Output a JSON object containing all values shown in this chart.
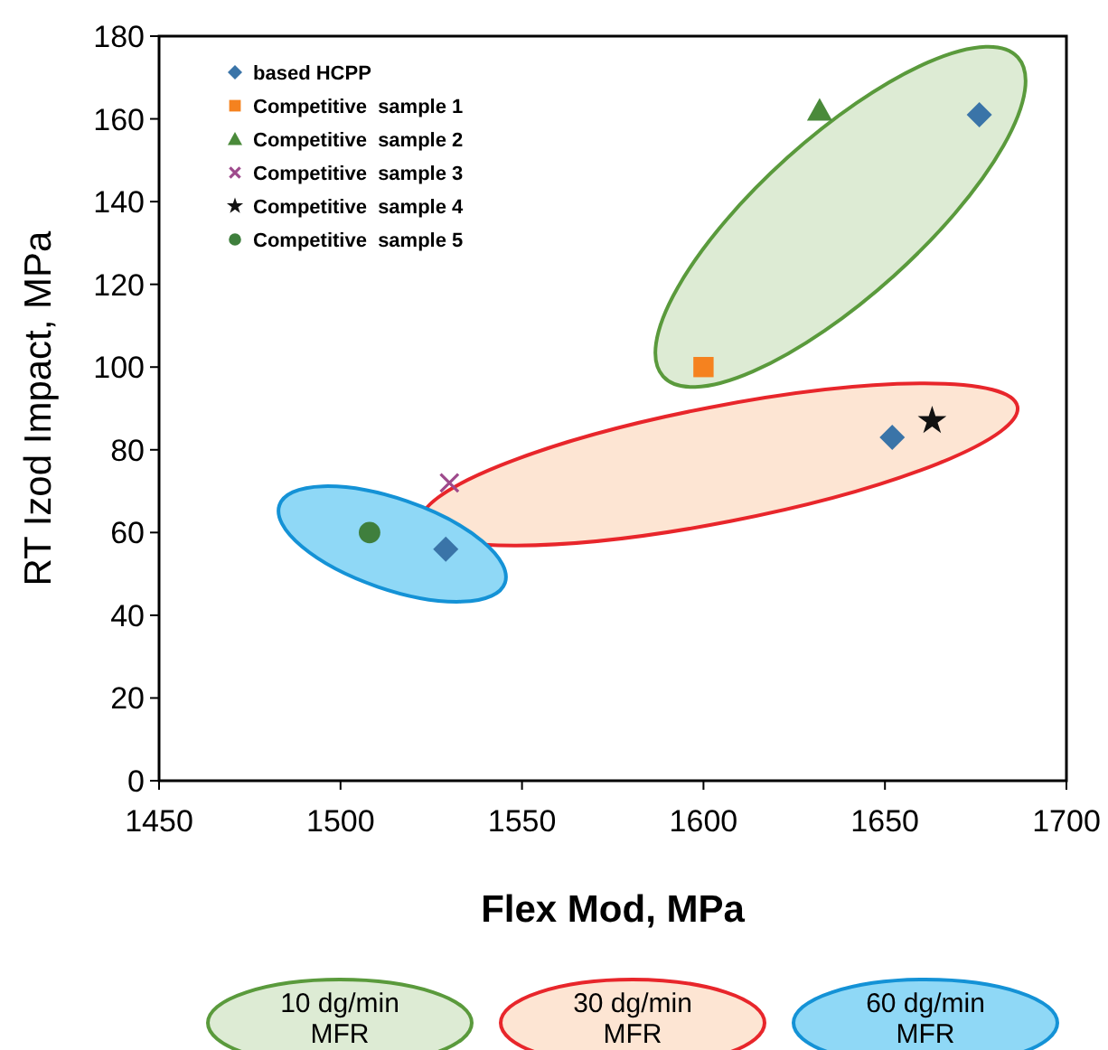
{
  "chart_data": {
    "type": "scatter",
    "xlabel": "Flex Mod, MPa",
    "ylabel": "RT Izod Impact, MPa",
    "xlim": [
      1450,
      1700
    ],
    "xticks": [
      1450,
      1500,
      1550,
      1600,
      1650,
      1700
    ],
    "ylim": [
      0,
      180
    ],
    "yticks": [
      0,
      20,
      40,
      60,
      80,
      100,
      120,
      140,
      160,
      180
    ],
    "grid": false,
    "legend": "top left",
    "series": [
      {
        "name": "based HCPP",
        "color": "#3a74a8",
        "marker": "diamond",
        "x": [
          1676,
          1652,
          1529
        ],
        "values": [
          161,
          83,
          56
        ]
      },
      {
        "name": "Competitive  sample 1",
        "color": "#f5821f",
        "marker": "square",
        "x": [
          1600
        ],
        "values": [
          100
        ]
      },
      {
        "name": "Competitive  sample 2",
        "color": "#4a8a3a",
        "marker": "triangle",
        "x": [
          1632
        ],
        "values": [
          162
        ]
      },
      {
        "name": "Competitive  sample 3",
        "color": "#9e4a8c",
        "marker": "cross",
        "x": [
          1530
        ],
        "values": [
          72
        ]
      },
      {
        "name": "Competitive  sample 4",
        "color": "#111111",
        "marker": "star",
        "x": [
          1663
        ],
        "values": [
          87
        ]
      },
      {
        "name": "Competitive  sample 5",
        "color": "#3f7f3d",
        "marker": "circle",
        "x": [
          1508
        ],
        "values": [
          60
        ]
      }
    ],
    "annotations": [
      "10 dg/min MFR",
      "30 dg/min MFR",
      "60 dg/min MFR"
    ]
  }
}
